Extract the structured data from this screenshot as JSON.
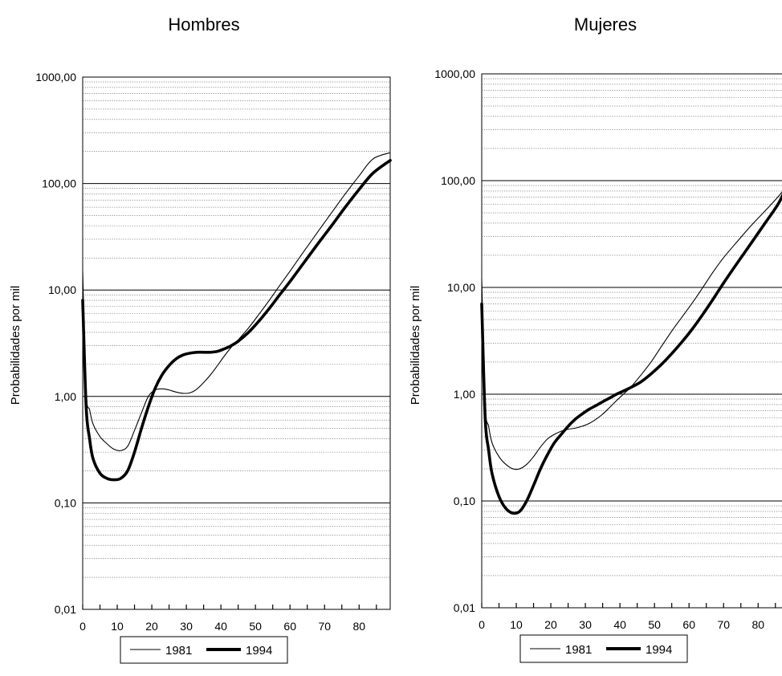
{
  "chart_data": [
    {
      "type": "line",
      "title": "Hombres",
      "ylabel": "Probabilidades por mil",
      "xlabel": "",
      "xlim": [
        0,
        89
      ],
      "ylim": [
        0.01,
        1000
      ],
      "yscale": "log",
      "grid": true,
      "x_ticks": [
        "0",
        "10",
        "20",
        "30",
        "40",
        "50",
        "60",
        "70",
        "80"
      ],
      "y_ticks": [
        "0,01",
        "0,10",
        "1,00",
        "10,00",
        "100,00",
        "1000,00"
      ],
      "legend": {
        "placement": "bottom",
        "entries": [
          "1981",
          "1994"
        ]
      },
      "series": [
        {
          "name": "1981",
          "style": "thin",
          "x": [
            0,
            1,
            2,
            3,
            5,
            7,
            9,
            11,
            13,
            15,
            17,
            19,
            21,
            23,
            25,
            27,
            29,
            31,
            33,
            35,
            37,
            39,
            41,
            43,
            45,
            48,
            51,
            54,
            57,
            60,
            64,
            68,
            72,
            76,
            80,
            84,
            89
          ],
          "y": [
            15,
            1.1,
            0.75,
            0.55,
            0.42,
            0.36,
            0.32,
            0.31,
            0.34,
            0.48,
            0.7,
            1.0,
            1.15,
            1.18,
            1.15,
            1.1,
            1.07,
            1.08,
            1.17,
            1.35,
            1.6,
            1.95,
            2.4,
            2.9,
            3.4,
            4.4,
            5.9,
            8.0,
            11,
            15,
            23,
            35,
            53,
            80,
            118,
            170,
            195
          ]
        },
        {
          "name": "1994",
          "style": "thick",
          "x": [
            0,
            1,
            2,
            3,
            5,
            7,
            9,
            11,
            13,
            15,
            17,
            19,
            21,
            23,
            25,
            27,
            29,
            31,
            33,
            35,
            37,
            39,
            41,
            43,
            45,
            48,
            51,
            54,
            57,
            60,
            64,
            68,
            72,
            76,
            80,
            84,
            89
          ],
          "y": [
            8,
            0.8,
            0.4,
            0.26,
            0.19,
            0.17,
            0.165,
            0.17,
            0.2,
            0.3,
            0.5,
            0.8,
            1.2,
            1.6,
            1.95,
            2.25,
            2.45,
            2.55,
            2.6,
            2.6,
            2.6,
            2.65,
            2.8,
            3.0,
            3.3,
            4.0,
            5.1,
            6.7,
            9.0,
            12,
            18,
            27,
            40,
            60,
            88,
            125,
            165
          ]
        }
      ]
    },
    {
      "type": "line",
      "title": "Mujeres",
      "ylabel": "Probabilidades por mil",
      "xlabel": "",
      "xlim": [
        0,
        89
      ],
      "ylim": [
        0.01,
        1000
      ],
      "yscale": "log",
      "grid": true,
      "x_ticks": [
        "0",
        "10",
        "20",
        "30",
        "40",
        "50",
        "60",
        "70",
        "80"
      ],
      "y_ticks": [
        "0,01",
        "0,10",
        "1,00",
        "10,00",
        "100,00",
        "1000,00"
      ],
      "legend": {
        "placement": "bottom",
        "entries": [
          "1981",
          "1994"
        ]
      },
      "series": [
        {
          "name": "1981",
          "style": "thin",
          "x": [
            0,
            1,
            2,
            3,
            5,
            7,
            9,
            11,
            13,
            15,
            17,
            19,
            21,
            23,
            25,
            27,
            29,
            31,
            33,
            35,
            37,
            39,
            41,
            43,
            46,
            49,
            52,
            55,
            58,
            61,
            64,
            67,
            70,
            74,
            78,
            82,
            86,
            89
          ],
          "y": [
            12,
            0.8,
            0.5,
            0.35,
            0.26,
            0.22,
            0.2,
            0.2,
            0.22,
            0.26,
            0.32,
            0.38,
            0.42,
            0.45,
            0.47,
            0.48,
            0.5,
            0.53,
            0.58,
            0.65,
            0.75,
            0.87,
            1.0,
            1.15,
            1.5,
            2.0,
            2.8,
            3.9,
            5.3,
            7.2,
            10,
            14,
            19,
            27,
            38,
            52,
            72,
            95
          ]
        },
        {
          "name": "1994",
          "style": "thick",
          "x": [
            0,
            1,
            2,
            3,
            5,
            7,
            9,
            11,
            13,
            15,
            17,
            19,
            21,
            23,
            25,
            27,
            29,
            31,
            33,
            35,
            37,
            39,
            41,
            43,
            46,
            49,
            52,
            55,
            58,
            61,
            64,
            67,
            70,
            74,
            78,
            82,
            86,
            89
          ],
          "y": [
            7,
            0.6,
            0.3,
            0.18,
            0.11,
            0.085,
            0.077,
            0.08,
            0.1,
            0.14,
            0.2,
            0.27,
            0.35,
            0.42,
            0.5,
            0.58,
            0.65,
            0.72,
            0.78,
            0.85,
            0.92,
            1.0,
            1.07,
            1.15,
            1.3,
            1.55,
            1.9,
            2.4,
            3.1,
            4.1,
            5.6,
            7.8,
            11,
            17,
            26,
            40,
            62,
            100
          ]
        }
      ]
    }
  ]
}
